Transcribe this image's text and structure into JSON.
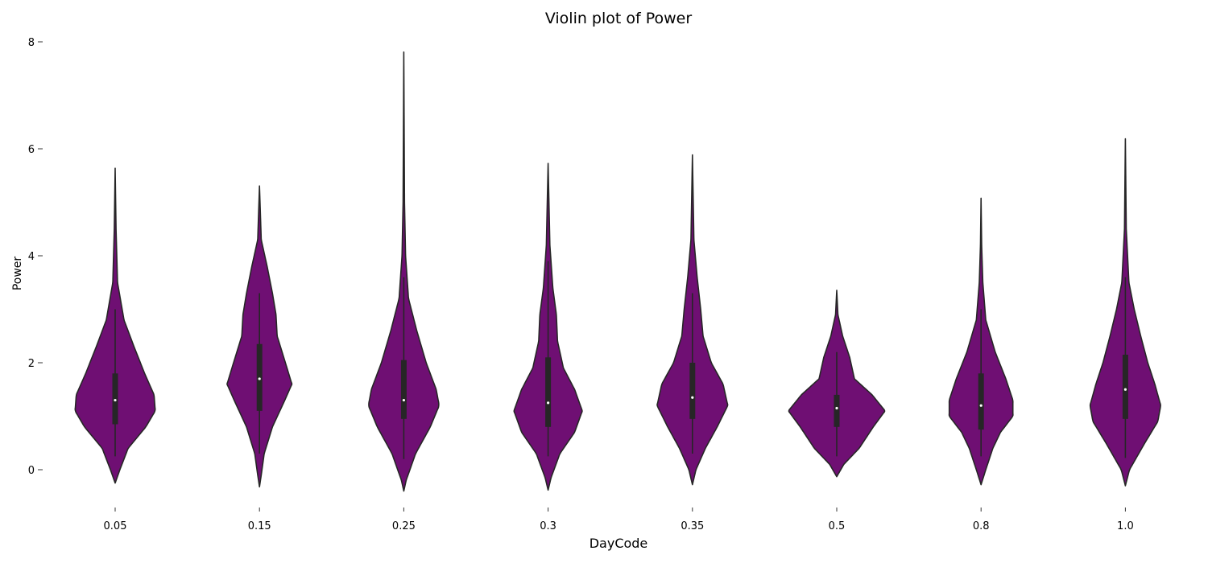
{
  "chart_data": {
    "type": "violin",
    "title": "Violin plot of Power",
    "xlabel": "DayCode",
    "ylabel": "Power",
    "ylim": [
      -0.5,
      8
    ],
    "yticks": [
      0,
      2,
      4,
      6,
      8
    ],
    "grid": false,
    "legend": "none",
    "fill_color": "#6f0f73",
    "outline_color": "#262626",
    "categories": [
      "0.05",
      "0.15",
      "0.25",
      "0.3",
      "0.35",
      "0.5",
      "0.8",
      "1.0"
    ],
    "series": [
      {
        "category": "0.05",
        "median": 1.3,
        "q1": 0.85,
        "q3": 1.8,
        "whisker_low": 0.25,
        "whisker_high": 3.0,
        "profile": [
          [
            -0.25,
            0
          ],
          [
            0,
            0.08
          ],
          [
            0.4,
            0.22
          ],
          [
            0.8,
            0.52
          ],
          [
            1.1,
            0.68
          ],
          [
            1.4,
            0.66
          ],
          [
            1.8,
            0.5
          ],
          [
            2.3,
            0.32
          ],
          [
            2.8,
            0.15
          ],
          [
            3.5,
            0.04
          ],
          [
            4.5,
            0.015
          ],
          [
            5.63,
            0
          ]
        ]
      },
      {
        "category": "0.15",
        "median": 1.7,
        "q1": 1.1,
        "q3": 2.35,
        "whisker_low": 0.3,
        "whisker_high": 3.3,
        "profile": [
          [
            -0.32,
            0
          ],
          [
            -0.1,
            0.03
          ],
          [
            0.3,
            0.08
          ],
          [
            0.8,
            0.22
          ],
          [
            1.3,
            0.43
          ],
          [
            1.6,
            0.55
          ],
          [
            2.0,
            0.44
          ],
          [
            2.5,
            0.3
          ],
          [
            2.9,
            0.28
          ],
          [
            3.3,
            0.22
          ],
          [
            3.8,
            0.13
          ],
          [
            4.3,
            0.03
          ],
          [
            5.3,
            0
          ]
        ]
      },
      {
        "category": "0.25",
        "median": 1.3,
        "q1": 0.95,
        "q3": 2.05,
        "whisker_low": 0.2,
        "whisker_high": 3.6,
        "profile": [
          [
            -0.4,
            0
          ],
          [
            -0.2,
            0.04
          ],
          [
            0.3,
            0.2
          ],
          [
            0.8,
            0.45
          ],
          [
            1.2,
            0.6
          ],
          [
            1.5,
            0.55
          ],
          [
            2.0,
            0.38
          ],
          [
            2.6,
            0.22
          ],
          [
            3.2,
            0.08
          ],
          [
            4.0,
            0.03
          ],
          [
            5.0,
            0.012
          ],
          [
            7.8,
            0
          ]
        ]
      },
      {
        "category": "0.3",
        "median": 1.25,
        "q1": 0.8,
        "q3": 2.1,
        "whisker_low": 0.25,
        "whisker_high": 3.9,
        "profile": [
          [
            -0.38,
            0
          ],
          [
            -0.15,
            0.05
          ],
          [
            0.3,
            0.2
          ],
          [
            0.7,
            0.45
          ],
          [
            1.1,
            0.58
          ],
          [
            1.5,
            0.45
          ],
          [
            1.9,
            0.26
          ],
          [
            2.4,
            0.16
          ],
          [
            2.9,
            0.14
          ],
          [
            3.4,
            0.08
          ],
          [
            4.2,
            0.03
          ],
          [
            5.72,
            0
          ]
        ]
      },
      {
        "category": "0.35",
        "median": 1.35,
        "q1": 0.95,
        "q3": 2.0,
        "whisker_low": 0.3,
        "whisker_high": 3.3,
        "profile": [
          [
            -0.28,
            0
          ],
          [
            0,
            0.06
          ],
          [
            0.4,
            0.22
          ],
          [
            0.8,
            0.42
          ],
          [
            1.2,
            0.6
          ],
          [
            1.6,
            0.52
          ],
          [
            2.0,
            0.32
          ],
          [
            2.5,
            0.18
          ],
          [
            3.0,
            0.14
          ],
          [
            3.6,
            0.08
          ],
          [
            4.3,
            0.025
          ],
          [
            5.88,
            0
          ]
        ]
      },
      {
        "category": "0.5",
        "median": 1.15,
        "q1": 0.8,
        "q3": 1.4,
        "whisker_low": 0.25,
        "whisker_high": 2.2,
        "profile": [
          [
            -0.13,
            0
          ],
          [
            0.1,
            0.12
          ],
          [
            0.4,
            0.38
          ],
          [
            0.8,
            0.62
          ],
          [
            1.1,
            0.82
          ],
          [
            1.4,
            0.6
          ],
          [
            1.7,
            0.3
          ],
          [
            2.1,
            0.22
          ],
          [
            2.5,
            0.1
          ],
          [
            2.9,
            0.02
          ],
          [
            3.35,
            0
          ]
        ]
      },
      {
        "category": "0.8",
        "median": 1.2,
        "q1": 0.75,
        "q3": 1.8,
        "whisker_low": 0.25,
        "whisker_high": 3.0,
        "profile": [
          [
            -0.28,
            0
          ],
          [
            0,
            0.08
          ],
          [
            0.4,
            0.2
          ],
          [
            0.7,
            0.33
          ],
          [
            1.0,
            0.54
          ],
          [
            1.3,
            0.54
          ],
          [
            1.7,
            0.42
          ],
          [
            2.2,
            0.24
          ],
          [
            2.8,
            0.08
          ],
          [
            3.5,
            0.03
          ],
          [
            4.2,
            0.01
          ],
          [
            5.07,
            0
          ]
        ]
      },
      {
        "category": "1.0",
        "median": 1.5,
        "q1": 0.95,
        "q3": 2.15,
        "whisker_low": 0.22,
        "whisker_high": 3.6,
        "profile": [
          [
            -0.3,
            0
          ],
          [
            0,
            0.07
          ],
          [
            0.5,
            0.33
          ],
          [
            0.9,
            0.55
          ],
          [
            1.2,
            0.6
          ],
          [
            1.6,
            0.5
          ],
          [
            2.0,
            0.38
          ],
          [
            2.5,
            0.26
          ],
          [
            3.0,
            0.15
          ],
          [
            3.5,
            0.06
          ],
          [
            4.5,
            0.015
          ],
          [
            6.18,
            0
          ]
        ]
      }
    ]
  }
}
